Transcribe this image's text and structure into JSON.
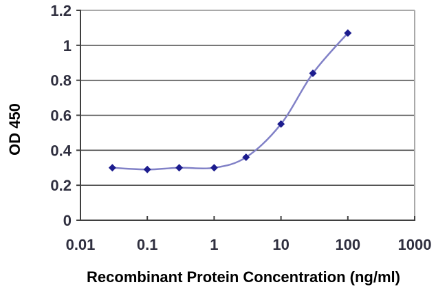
{
  "chart": {
    "xlabel": "Recombinant Protein Concentration (ng/ml)",
    "ylabel": "OD 450"
  },
  "chart_data": {
    "type": "line",
    "title": "",
    "xlabel": "Recombinant Protein Concentration (ng/ml)",
    "ylabel": "OD 450",
    "x_scale": "log",
    "x": [
      0.03,
      0.1,
      0.3,
      1,
      3,
      10,
      30,
      100
    ],
    "y": [
      0.3,
      0.29,
      0.3,
      0.3,
      0.36,
      0.55,
      0.84,
      1.07
    ],
    "x_ticks": [
      0.01,
      0.1,
      1,
      10,
      100,
      1000
    ],
    "y_ticks": [
      0,
      0.2,
      0.4,
      0.6,
      0.8,
      1,
      1.2
    ],
    "xlim": [
      0.01,
      1000
    ],
    "ylim": [
      0,
      1.2
    ],
    "grid": "horizontal",
    "legend": "none",
    "line_smoothing": true,
    "marker": "diamond",
    "colors": {
      "line": "#8181c7",
      "marker": "#1c1c8e",
      "grid": "#4f4f4f",
      "axis": "#3f3f3f",
      "border": "#a9a9a9",
      "text": "#2f2f3f",
      "background": "#ffffff"
    }
  }
}
